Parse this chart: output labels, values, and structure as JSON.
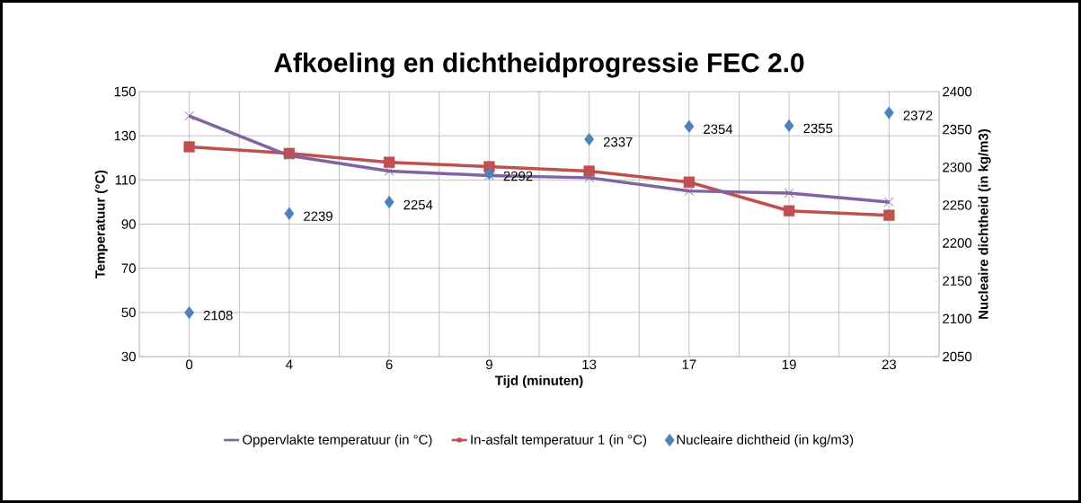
{
  "chart_data": {
    "type": "line",
    "title": "Afkoeling en dichtheidprogressie FEC 2.0",
    "xlabel": "Tijd (minuten)",
    "ylabel": "Temperatuur (°C)",
    "y2label": "Nucleaire dichtheid (in kg/m3)",
    "categories": [
      "0",
      "4",
      "6",
      "9",
      "13",
      "17",
      "19",
      "23"
    ],
    "ylim": [
      30,
      150
    ],
    "yticks": [
      30,
      50,
      70,
      90,
      110,
      130,
      150
    ],
    "y2lim": [
      2050,
      2400
    ],
    "y2ticks": [
      2050,
      2100,
      2150,
      2200,
      2250,
      2300,
      2350,
      2400
    ],
    "grid": true,
    "legend": "bottom",
    "line_style": "solid",
    "series": [
      {
        "name": "Oppervlakte temperatuur (in °C)",
        "marker": "cross",
        "color": "#8064a2",
        "values": [
          139,
          121,
          114,
          112,
          111,
          105,
          104,
          100
        ]
      },
      {
        "name": "In-asfalt temperatuur 1 (in °C)",
        "marker": "square",
        "color": "#c0504d",
        "values": [
          125,
          122,
          118,
          116,
          114,
          109,
          96,
          94
        ]
      },
      {
        "name": "Nucleaire dichtheid (in kg/m3)",
        "type": "scatter",
        "marker": "diamond",
        "axis": "y2",
        "color": "#4f81bd",
        "values": [
          2108,
          2239,
          2254,
          2292,
          2337,
          2354,
          2355,
          2372
        ],
        "value_labels": [
          "2108",
          "2239",
          "2254",
          "2292",
          "2337",
          "2354",
          "2355",
          "2372"
        ]
      }
    ]
  }
}
